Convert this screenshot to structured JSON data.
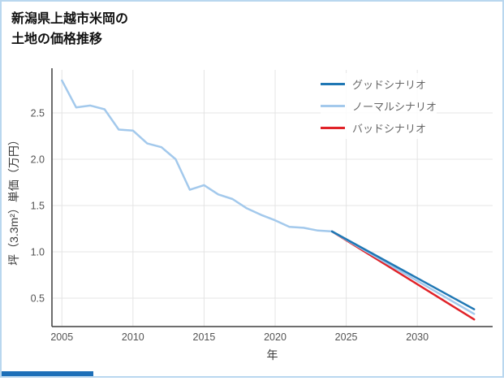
{
  "title": {
    "line1": "新潟県上越市米岡の",
    "line2": "土地の価格推移"
  },
  "chart_data": {
    "type": "line",
    "title": "新潟県上越市米岡の土地の価格推移",
    "xlabel": "年",
    "ylabel": "坪（3.3m²）単価（万円）",
    "xlim": [
      2004.3,
      2035.3
    ],
    "ylim": [
      0.193,
      2.93
    ],
    "xticks": [
      2005,
      2010,
      2015,
      2020,
      2025,
      2030
    ],
    "yticks": [
      0.5,
      1.0,
      1.5,
      2.0,
      2.5
    ],
    "grid": true,
    "legend_position": "top-right",
    "series": [
      {
        "name": "グッドシナリオ",
        "color": "#1f77b4",
        "x": [
          2024,
          2034
        ],
        "y": [
          1.22,
          0.38
        ]
      },
      {
        "name": "ノーマルシナリオ",
        "color": "#a3c9ec",
        "x": [
          2005,
          2006,
          2007,
          2008,
          2009,
          2010,
          2011,
          2012,
          2013,
          2014,
          2015,
          2016,
          2017,
          2018,
          2019,
          2020,
          2021,
          2022,
          2023,
          2024,
          2034
        ],
        "y": [
          2.85,
          2.56,
          2.58,
          2.54,
          2.32,
          2.31,
          2.17,
          2.13,
          2.0,
          1.67,
          1.72,
          1.62,
          1.57,
          1.47,
          1.4,
          1.34,
          1.27,
          1.26,
          1.23,
          1.22,
          0.33
        ]
      },
      {
        "name": "バッドシナリオ",
        "color": "#e02228",
        "x": [
          2024,
          2034
        ],
        "y": [
          1.22,
          0.27
        ]
      }
    ]
  }
}
